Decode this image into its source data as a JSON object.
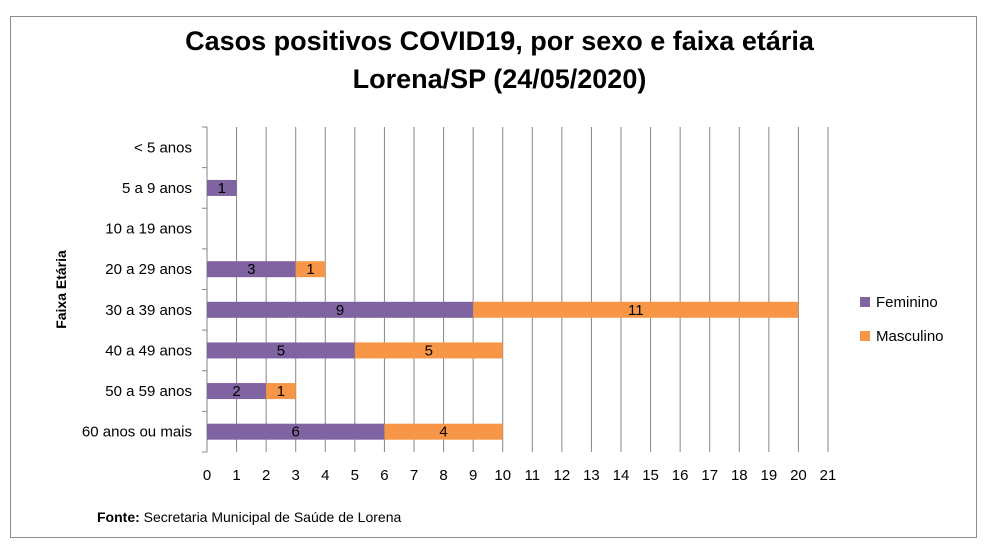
{
  "colors": {
    "feminino": "#8064a2",
    "masculino": "#f79646",
    "axis": "#868686",
    "text": "#000000"
  },
  "chart_data": {
    "type": "bar",
    "orientation": "horizontal",
    "stacked": true,
    "title": "Casos positivos COVID19, por sexo e faixa etária",
    "subtitle": "Lorena/SP (24/05/2020)",
    "xlabel": "",
    "ylabel": "Faixa Etária",
    "xlim": [
      0,
      21
    ],
    "xticks": [
      "0",
      "1",
      "2",
      "3",
      "4",
      "5",
      "6",
      "7",
      "8",
      "9",
      "10",
      "11",
      "12",
      "13",
      "14",
      "15",
      "16",
      "17",
      "18",
      "19",
      "20",
      "21"
    ],
    "grid": "vertical",
    "legend_position": "right",
    "categories": [
      "< 5 anos",
      "5 a 9 anos",
      "10 a 19 anos",
      "20 a 29 anos",
      "30 a 39 anos",
      "40 a 49 anos",
      "50 a 59 anos",
      "60 anos ou mais"
    ],
    "series": [
      {
        "name": "Feminino",
        "values": [
          0,
          1,
          0,
          3,
          9,
          5,
          2,
          6
        ]
      },
      {
        "name": "Masculino",
        "values": [
          0,
          0,
          0,
          1,
          11,
          5,
          1,
          4
        ]
      }
    ]
  },
  "source": {
    "label": "Fonte:",
    "text": " Secretaria Municipal de Saúde de Lorena"
  }
}
